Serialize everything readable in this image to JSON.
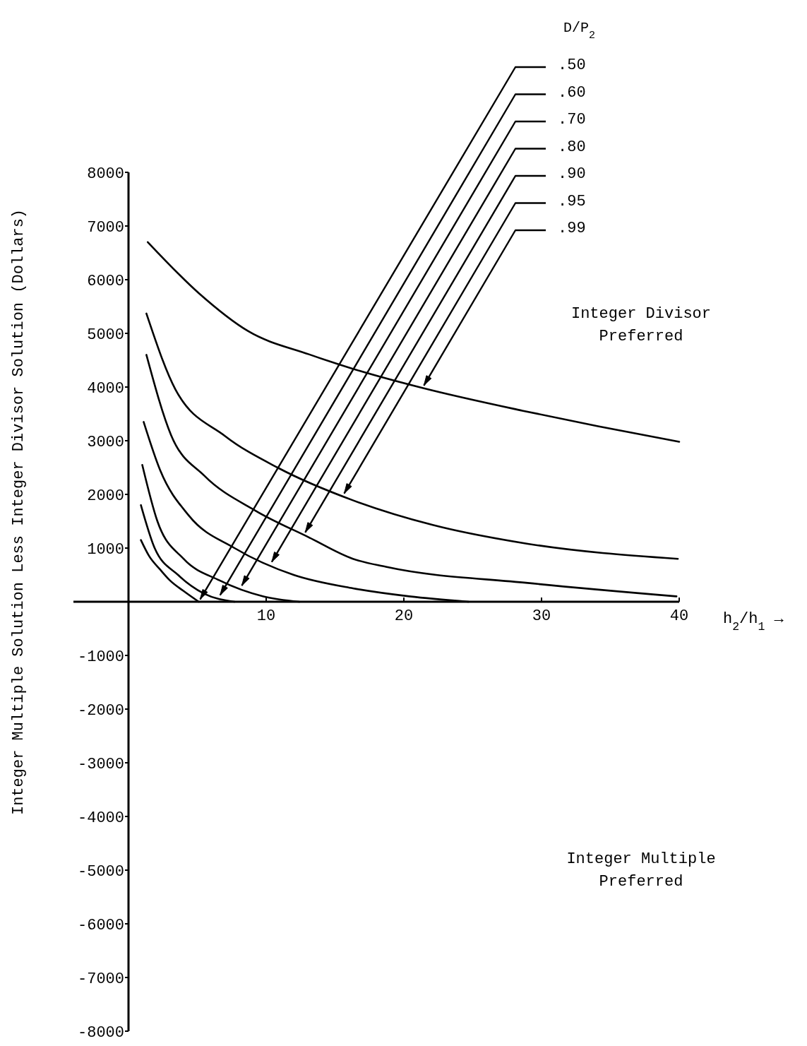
{
  "chart_data": {
    "type": "line",
    "ylabel": "Integer Multiple Solution Less Integer Divisor Solution (Dollars)",
    "xlabel": "h$_{2}$/h$_{1}$ →",
    "legend_title": "D/P$_{2}$",
    "legend": "top right",
    "grid": false,
    "xlim": [
      -4,
      40
    ],
    "xticks": [
      10,
      20,
      30,
      40
    ],
    "ylim": [
      -8000,
      8000
    ],
    "yticks": [
      -8000,
      -7000,
      -6000,
      -5000,
      -4000,
      -3000,
      -2000,
      -1000,
      1000,
      2000,
      3000,
      4000,
      5000,
      6000,
      7000,
      8000
    ],
    "series": [
      {
        "name": ".50",
        "color": "#000000",
        "x": [
          0.9,
          1.5,
          2.3,
          3.0,
          4.0,
          5.1
        ],
        "values": [
          1150,
          850,
          600,
          400,
          200,
          0
        ]
      },
      {
        "name": ".60",
        "color": "#000000",
        "x": [
          0.9,
          1.9,
          3.6,
          5.5,
          7.7
        ],
        "values": [
          1800,
          1000,
          500,
          150,
          0
        ]
      },
      {
        "name": ".70",
        "color": "#000000",
        "x": [
          1.0,
          2.1,
          4.0,
          6.6,
          9.8,
          12.4
        ],
        "values": [
          2550,
          1500,
          800,
          400,
          100,
          0
        ]
      },
      {
        "name": ".80",
        "color": "#000000",
        "x": [
          1.1,
          2.3,
          4.4,
          7.7,
          12.0,
          16.3,
          20.4,
          24.7
        ],
        "values": [
          3350,
          2450,
          1600,
          1000,
          500,
          250,
          100,
          0
        ]
      },
      {
        "name": ".90",
        "color": "#000000",
        "x": [
          1.3,
          3.1,
          5.5,
          9.2,
          13.1,
          16.3,
          18.7,
          29.0,
          39.8
        ],
        "values": [
          4600,
          3100,
          2350,
          1700,
          1200,
          800,
          650,
          350,
          100
        ]
      },
      {
        "name": ".95",
        "color": "#000000",
        "x": [
          1.3,
          3.4,
          7.0,
          10.9,
          16.3,
          22.1,
          29.0,
          39.9
        ],
        "values": [
          5370,
          3960,
          3090,
          2490,
          1890,
          1430,
          1080,
          800
        ]
      },
      {
        "name": ".99",
        "color": "#000000",
        "x": [
          1.4,
          5.1,
          8.7,
          13.1,
          16.3,
          21.4,
          28.6,
          34.1,
          40.0
        ],
        "values": [
          6700,
          5750,
          5040,
          4610,
          4340,
          3980,
          3560,
          3270,
          2980
        ]
      }
    ],
    "annotations": [
      "Integer Divisor\nPreferred",
      "Integer Multiple\nPreferred"
    ]
  }
}
